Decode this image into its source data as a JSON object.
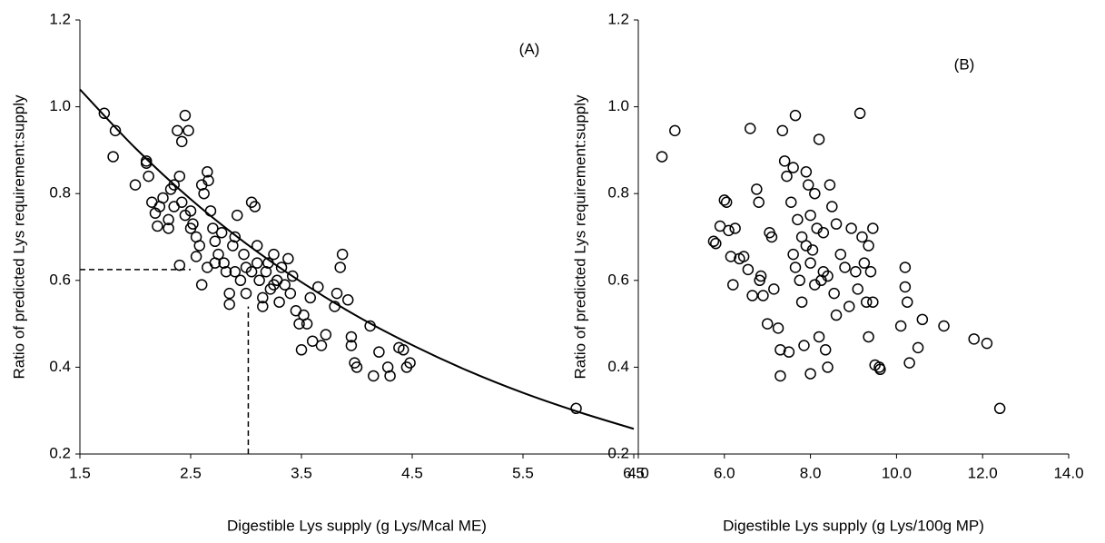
{
  "chart_data": [
    {
      "type": "scatter",
      "annotation": "(A)",
      "x_label": "Digestible Lys supply (g Lys/Mcal ME)",
      "y_label": "Ratio of predicted Lys requirement:supply",
      "color": "#000000",
      "xlim": [
        1.5,
        6.5
      ],
      "ylim": [
        0.2,
        1.2
      ],
      "xticks": [
        1.5,
        2.5,
        3.5,
        4.5,
        5.5,
        6.5
      ],
      "yticks": [
        0.2,
        0.4,
        0.6,
        0.8,
        {
          "value": 1,
          "label": "1.0"
        },
        1.2
      ],
      "x": [
        1.72,
        1.82,
        1.8,
        2.0,
        2.1,
        2.1,
        2.12,
        2.15,
        2.18,
        2.2,
        2.25,
        2.3,
        2.32,
        2.35,
        2.38,
        2.42,
        2.45,
        2.48,
        2.4,
        2.42,
        2.45,
        2.5,
        2.52,
        2.55,
        2.58,
        2.6,
        2.62,
        2.65,
        2.66,
        2.68,
        2.4,
        2.55,
        2.6,
        2.65,
        2.7,
        2.72,
        2.75,
        2.78,
        2.8,
        2.82,
        2.85,
        2.85,
        2.88,
        2.9,
        2.92,
        2.95,
        2.98,
        3.0,
        3.0,
        3.05,
        3.08,
        3.1,
        3.12,
        3.15,
        3.15,
        3.18,
        3.2,
        3.22,
        3.25,
        3.28,
        3.3,
        3.32,
        3.35,
        3.38,
        3.4,
        3.42,
        3.45,
        3.48,
        3.5,
        3.52,
        3.55,
        3.58,
        3.6,
        3.65,
        3.68,
        3.72,
        3.8,
        3.82,
        3.85,
        3.87,
        3.92,
        3.95,
        3.95,
        3.98,
        4.0,
        4.12,
        4.15,
        4.2,
        4.28,
        4.3,
        4.38,
        4.42,
        4.45,
        4.48,
        5.98,
        2.22,
        2.3,
        2.35,
        2.5,
        2.72,
        2.9,
        3.05,
        3.1,
        3.25
      ],
      "y": [
        0.985,
        0.945,
        0.885,
        0.82,
        0.875,
        0.87,
        0.84,
        0.78,
        0.755,
        0.725,
        0.79,
        0.72,
        0.81,
        0.82,
        0.945,
        0.92,
        0.98,
        0.945,
        0.84,
        0.78,
        0.75,
        0.76,
        0.73,
        0.7,
        0.68,
        0.82,
        0.8,
        0.85,
        0.83,
        0.76,
        0.635,
        0.655,
        0.59,
        0.63,
        0.72,
        0.69,
        0.66,
        0.71,
        0.64,
        0.62,
        0.57,
        0.545,
        0.68,
        0.7,
        0.75,
        0.6,
        0.66,
        0.63,
        0.57,
        0.78,
        0.77,
        0.68,
        0.6,
        0.56,
        0.54,
        0.62,
        0.64,
        0.58,
        0.66,
        0.6,
        0.55,
        0.63,
        0.59,
        0.65,
        0.57,
        0.61,
        0.53,
        0.5,
        0.44,
        0.52,
        0.5,
        0.56,
        0.46,
        0.585,
        0.45,
        0.475,
        0.54,
        0.57,
        0.63,
        0.66,
        0.555,
        0.47,
        0.45,
        0.41,
        0.4,
        0.495,
        0.38,
        0.435,
        0.4,
        0.38,
        0.445,
        0.44,
        0.4,
        0.41,
        0.305,
        0.77,
        0.74,
        0.77,
        0.72,
        0.64,
        0.62,
        0.62,
        0.64,
        0.59
      ],
      "fit_line": {
        "x": [
          1.5,
          2.0,
          2.5,
          3.0,
          3.5,
          4.0,
          4.5,
          5.0,
          5.5,
          6.0,
          6.5
        ],
        "y": [
          1.04,
          0.905,
          0.787,
          0.685,
          0.596,
          0.518,
          0.451,
          0.392,
          0.341,
          0.297,
          0.258
        ]
      },
      "reference_lines": [
        {
          "x": [
            1.5,
            2.5
          ],
          "y": [
            0.625,
            0.625
          ]
        },
        {
          "x": [
            3.02,
            3.02
          ],
          "y": [
            0.2,
            0.54
          ]
        }
      ]
    },
    {
      "type": "scatter",
      "annotation": "(B)",
      "x_label": "Digestible Lys supply (g Lys/100g MP)",
      "y_label": "Ratio of predicted Lys requirement:supply",
      "color": "#000000",
      "xlim": [
        4,
        14
      ],
      "ylim": [
        0.2,
        1.2
      ],
      "xticks": [
        {
          "value": 4,
          "label": "4.0"
        },
        {
          "value": 6,
          "label": "6.0"
        },
        {
          "value": 8,
          "label": "8.0"
        },
        {
          "value": 10,
          "label": "10.0"
        },
        {
          "value": 12,
          "label": "12.0"
        },
        {
          "value": 14,
          "label": "14.0"
        }
      ],
      "yticks": [
        0.2,
        0.4,
        0.6,
        0.8,
        {
          "value": 1,
          "label": "1.0"
        },
        1.2
      ],
      "x": [
        4.55,
        4.85,
        5.75,
        5.8,
        5.9,
        6.0,
        6.05,
        6.1,
        6.15,
        6.2,
        6.25,
        6.35,
        6.45,
        6.55,
        6.6,
        6.65,
        6.75,
        6.8,
        6.82,
        6.85,
        6.9,
        7.0,
        7.05,
        7.1,
        7.15,
        7.25,
        7.3,
        7.3,
        7.35,
        7.4,
        7.45,
        7.5,
        7.55,
        7.6,
        7.65,
        7.65,
        7.7,
        7.75,
        7.8,
        7.85,
        7.9,
        7.95,
        8.0,
        8.0,
        8.05,
        8.1,
        8.15,
        8.2,
        8.2,
        8.25,
        8.3,
        8.35,
        8.4,
        8.45,
        8.5,
        8.55,
        8.6,
        8.7,
        8.8,
        8.9,
        8.95,
        9.05,
        9.15,
        9.2,
        9.25,
        9.3,
        9.35,
        9.35,
        9.4,
        9.45,
        9.5,
        9.6,
        9.62,
        9.45,
        10.1,
        10.2,
        10.2,
        10.25,
        10.3,
        10.5,
        10.6,
        11.1,
        11.8,
        12.1,
        12.4,
        7.9,
        8.1,
        8.3,
        7.6,
        8.0,
        8.4,
        7.8,
        9.1,
        8.6
      ],
      "y": [
        0.885,
        0.945,
        0.69,
        0.685,
        0.725,
        0.785,
        0.78,
        0.715,
        0.655,
        0.59,
        0.72,
        0.65,
        0.655,
        0.625,
        0.95,
        0.565,
        0.81,
        0.78,
        0.6,
        0.61,
        0.565,
        0.5,
        0.71,
        0.7,
        0.58,
        0.49,
        0.44,
        0.38,
        0.945,
        0.875,
        0.84,
        0.435,
        0.78,
        0.86,
        0.98,
        0.63,
        0.74,
        0.6,
        0.55,
        0.45,
        0.85,
        0.82,
        0.75,
        0.385,
        0.67,
        0.8,
        0.72,
        0.925,
        0.47,
        0.6,
        0.62,
        0.44,
        0.4,
        0.82,
        0.77,
        0.57,
        0.52,
        0.66,
        0.63,
        0.54,
        0.72,
        0.62,
        0.985,
        0.7,
        0.64,
        0.55,
        0.47,
        0.68,
        0.62,
        0.72,
        0.405,
        0.4,
        0.395,
        0.55,
        0.495,
        0.63,
        0.585,
        0.55,
        0.41,
        0.445,
        0.51,
        0.495,
        0.465,
        0.455,
        0.305,
        0.68,
        0.59,
        0.71,
        0.66,
        0.64,
        0.61,
        0.7,
        0.58,
        0.73
      ]
    }
  ]
}
